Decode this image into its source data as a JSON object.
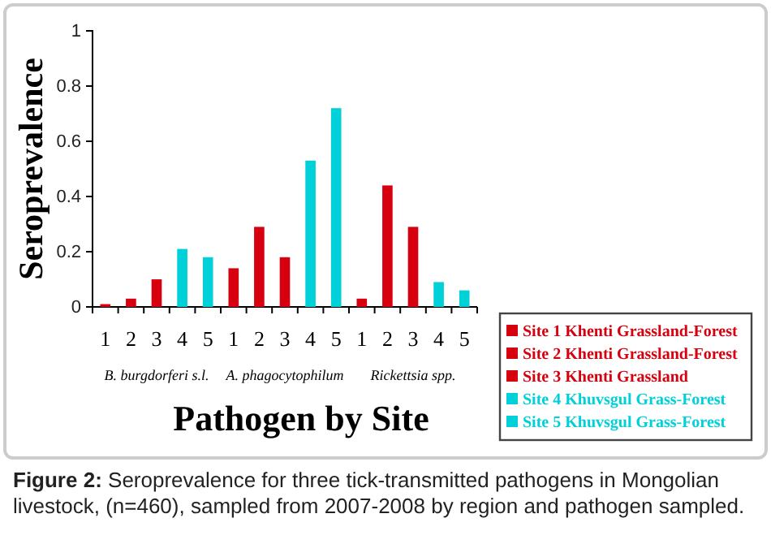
{
  "chart_data": {
    "type": "bar",
    "xlabel": "Pathogen by Site",
    "ylabel": "Seroprevalence",
    "categories": [
      "1",
      "2",
      "3",
      "4",
      "5",
      "1",
      "2",
      "3",
      "4",
      "5",
      "1",
      "2",
      "3",
      "4",
      "5"
    ],
    "series": [
      {
        "name": "Site 1 Khenti Grassland-Forest",
        "color": "#d6000f",
        "values": [
          0.01,
          null,
          null,
          null,
          null,
          0.14,
          null,
          null,
          null,
          null,
          0.03,
          null,
          null,
          null,
          null
        ]
      },
      {
        "name": "Site 2 Khenti Grassland-Forest",
        "color": "#d6000f",
        "values": [
          null,
          0.03,
          null,
          null,
          null,
          null,
          0.29,
          null,
          null,
          null,
          null,
          0.44,
          null,
          null,
          null
        ]
      },
      {
        "name": "Site 3 Khenti Grassland",
        "color": "#d6000f",
        "values": [
          null,
          null,
          0.1,
          null,
          null,
          null,
          null,
          0.18,
          null,
          null,
          null,
          null,
          0.29,
          null,
          null
        ]
      },
      {
        "name": "Site 4 Khuvsgul Grass-Forest",
        "color": "#00d0d8",
        "values": [
          null,
          null,
          null,
          0.21,
          null,
          null,
          null,
          null,
          0.53,
          null,
          null,
          null,
          null,
          0.09,
          null
        ]
      },
      {
        "name": "Site 5 Khuvsgul Grass-Forest",
        "color": "#00d0d8",
        "values": [
          null,
          null,
          null,
          null,
          0.18,
          null,
          null,
          null,
          null,
          0.72,
          null,
          null,
          null,
          null,
          0.06
        ]
      }
    ],
    "ylim": [
      0,
      1
    ],
    "yticks": [
      0,
      {
        "value": 0.2,
        "label": "0.2"
      },
      {
        "value": 0.4,
        "label": "0.4"
      },
      {
        "value": 0.6,
        "label": "0.6"
      },
      {
        "value": 0.8,
        "label": "0.8"
      },
      1
    ],
    "legend": "bottom right",
    "annotations": [
      "B. burgdorferi s.l.",
      "A. phagocytophilum",
      "Rickettsia spp.",
      "Figure 2: Seroprevalence for three tick-transmitted pathogens in Mongolian livestock, (n=460), sampled from 2007-2008 by region and pathogen sampled."
    ]
  }
}
